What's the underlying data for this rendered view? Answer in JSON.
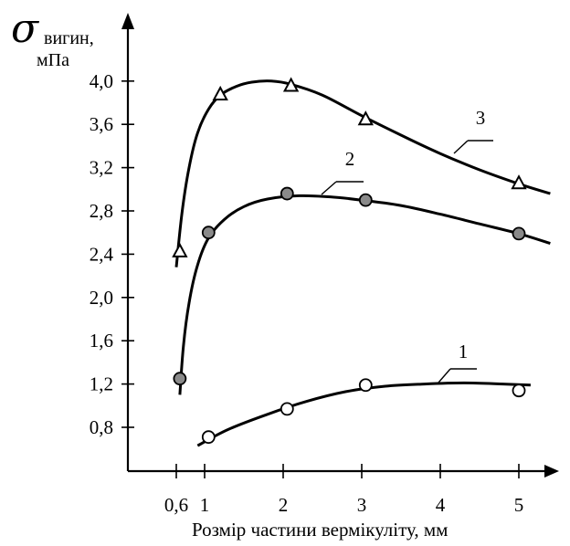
{
  "chart_data": {
    "type": "line",
    "title": "",
    "ylabel_symbol": "σ",
    "ylabel_sub": "вигин,",
    "ylabel_unit": "мПа",
    "xlabel": "Розмір частини вермікуліту, мм",
    "x_ticks": [
      0.6,
      1,
      2,
      3,
      4,
      5
    ],
    "x_tick_labels": [
      "0,6",
      "1",
      "2",
      "3",
      "4",
      "5"
    ],
    "y_ticks": [
      0.8,
      1.2,
      1.6,
      2.0,
      2.4,
      2.8,
      3.2,
      3.6,
      4.0
    ],
    "y_tick_labels": [
      "0,8",
      "1,2",
      "1,6",
      "2,0",
      "2,4",
      "2,8",
      "3,2",
      "3,6",
      "4,0"
    ],
    "xlim": [
      0.6,
      5
    ],
    "ylim": [
      0.8,
      4.0
    ],
    "grid": false,
    "series": [
      {
        "name": "1",
        "marker": "circle-open",
        "points": [
          [
            1.05,
            0.71
          ],
          [
            2.05,
            0.97
          ],
          [
            3.05,
            1.19
          ],
          [
            5.0,
            1.14
          ]
        ],
        "curve": [
          [
            0.9,
            0.63
          ],
          [
            1.3,
            0.78
          ],
          [
            1.8,
            0.92
          ],
          [
            2.3,
            1.04
          ],
          [
            2.8,
            1.13
          ],
          [
            3.3,
            1.18
          ],
          [
            3.8,
            1.2
          ],
          [
            4.3,
            1.21
          ],
          [
            4.8,
            1.2
          ],
          [
            5.15,
            1.19
          ]
        ]
      },
      {
        "name": "2",
        "marker": "circle-filled",
        "points": [
          [
            0.65,
            1.25
          ],
          [
            1.05,
            2.6
          ],
          [
            2.05,
            2.96
          ],
          [
            3.05,
            2.9
          ],
          [
            5.0,
            2.59
          ]
        ],
        "curve": [
          [
            0.65,
            1.1
          ],
          [
            0.7,
            1.55
          ],
          [
            0.78,
            1.95
          ],
          [
            0.9,
            2.3
          ],
          [
            1.05,
            2.55
          ],
          [
            1.25,
            2.72
          ],
          [
            1.5,
            2.84
          ],
          [
            1.8,
            2.91
          ],
          [
            2.2,
            2.94
          ],
          [
            2.6,
            2.93
          ],
          [
            3.0,
            2.9
          ],
          [
            3.5,
            2.85
          ],
          [
            4.0,
            2.77
          ],
          [
            4.5,
            2.68
          ],
          [
            5.0,
            2.59
          ],
          [
            5.4,
            2.5
          ]
        ]
      },
      {
        "name": "3",
        "marker": "triangle-open",
        "points": [
          [
            0.65,
            2.43
          ],
          [
            1.2,
            3.88
          ],
          [
            2.1,
            3.96
          ],
          [
            3.05,
            3.65
          ],
          [
            5.0,
            3.06
          ]
        ],
        "curve": [
          [
            0.6,
            2.28
          ],
          [
            0.68,
            2.78
          ],
          [
            0.78,
            3.2
          ],
          [
            0.9,
            3.52
          ],
          [
            1.05,
            3.74
          ],
          [
            1.2,
            3.87
          ],
          [
            1.4,
            3.95
          ],
          [
            1.6,
            3.99
          ],
          [
            1.85,
            4.0
          ],
          [
            2.1,
            3.97
          ],
          [
            2.5,
            3.87
          ],
          [
            3.0,
            3.68
          ],
          [
            3.5,
            3.5
          ],
          [
            4.0,
            3.33
          ],
          [
            4.5,
            3.18
          ],
          [
            5.0,
            3.05
          ],
          [
            5.4,
            2.96
          ]
        ]
      }
    ]
  }
}
